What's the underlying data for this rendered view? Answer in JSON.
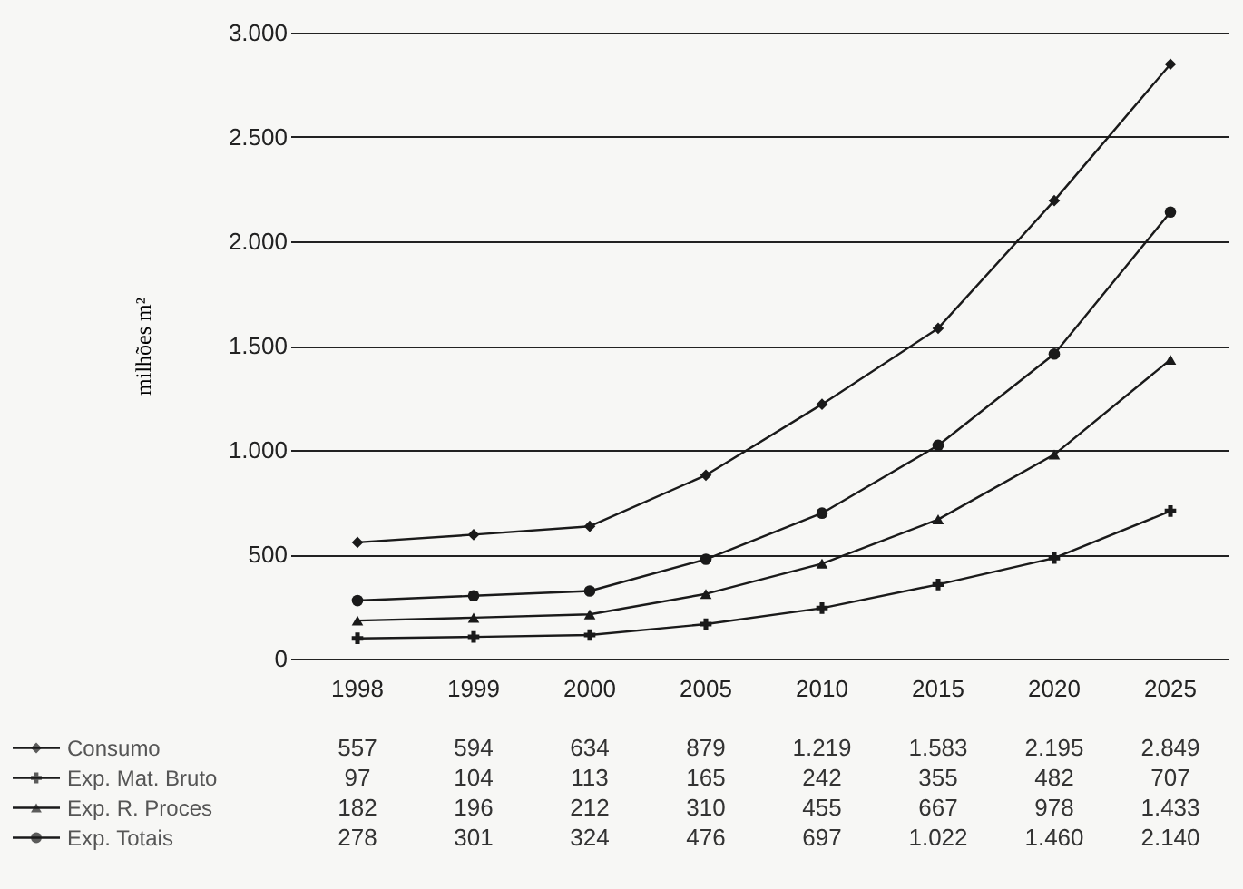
{
  "chart_data": {
    "type": "line",
    "ylabel": "milhões m²",
    "categories": [
      "1998",
      "1999",
      "2000",
      "2005",
      "2010",
      "2015",
      "2020",
      "2025"
    ],
    "series": [
      {
        "name": "Consumo",
        "color": "#1a1a1a",
        "marker": "diamond",
        "values": [
          557,
          594,
          634,
          879,
          1219,
          1583,
          2195,
          2849
        ],
        "value_labels": [
          "557",
          "594",
          "634",
          "879",
          "1.219",
          "1.583",
          "2.195",
          "2.849"
        ]
      },
      {
        "name": "Exp. Mat. Bruto",
        "color": "#1a1a1a",
        "marker": "cross",
        "values": [
          97,
          104,
          113,
          165,
          242,
          355,
          482,
          707
        ],
        "value_labels": [
          "97",
          "104",
          "113",
          "165",
          "242",
          "355",
          "482",
          "707"
        ]
      },
      {
        "name": "Exp. R. Proces",
        "color": "#1a1a1a",
        "marker": "triangle",
        "values": [
          182,
          196,
          212,
          310,
          455,
          667,
          978,
          1433
        ],
        "value_labels": [
          "182",
          "196",
          "212",
          "310",
          "455",
          "667",
          "978",
          "1.433"
        ]
      },
      {
        "name": "Exp. Totais",
        "color": "#1a1a1a",
        "marker": "circle",
        "values": [
          278,
          301,
          324,
          476,
          697,
          1022,
          1460,
          2140
        ],
        "value_labels": [
          "278",
          "301",
          "324",
          "476",
          "697",
          "1.022",
          "1.460",
          "2.140"
        ]
      }
    ],
    "ylim": [
      0,
      3000
    ],
    "yticks": [
      0,
      500,
      {
        "value": 1000,
        "label": "1.000"
      },
      {
        "value": 1500,
        "label": "1.500"
      },
      {
        "value": 2000,
        "label": "2.000"
      },
      {
        "value": 2500,
        "label": "2.500"
      },
      {
        "value": 3000,
        "label": "3.000"
      }
    ],
    "grid": "y",
    "legend": "bottom left",
    "line_style": "solid"
  }
}
